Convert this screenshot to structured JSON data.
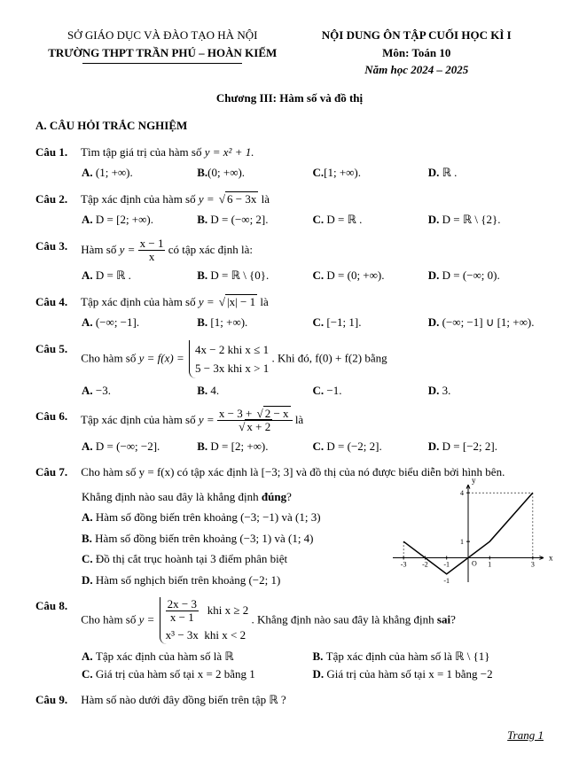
{
  "header": {
    "so": "SỞ GIÁO DỤC VÀ ĐÀO TẠO HÀ NỘI",
    "truong": "TRƯỜNG THPT TRẦN PHÚ – HOÀN KIẾM",
    "title": "NỘI DUNG ÔN TẬP CUỐI HỌC KÌ I",
    "mon": "Môn: Toán 10",
    "nam": "Năm học 2024 – 2025"
  },
  "chapter": "Chương III: Hàm số và đồ thị",
  "sectionA": "A. CÂU HỎI TRẮC NGHIỆM",
  "q1": {
    "label": "Câu 1.",
    "text": "Tìm tập giá trị của hàm số ",
    "formula": "y = x² + 1.",
    "A": "(1; +∞).",
    "B": "(0; +∞).",
    "C": "[1; +∞).",
    "D": "ℝ ."
  },
  "q2": {
    "label": "Câu 2.",
    "text": "Tập xác định của hàm số ",
    "formula_pre": "y = ",
    "radicand": "6 − 3x",
    "formula_post": " là",
    "A": "D = [2; +∞).",
    "B": "D = (−∞; 2].",
    "C": "D = ℝ .",
    "D": "D = ℝ \\ {2}."
  },
  "q3": {
    "label": "Câu 3.",
    "text": "Hàm số ",
    "frac_top": "x − 1",
    "frac_bot": "x",
    "text2": " có tập xác định là:",
    "A": "D = ℝ .",
    "B": "D = ℝ \\ {0}.",
    "C": "D = (0; +∞).",
    "D": "D = (−∞; 0)."
  },
  "q4": {
    "label": "Câu 4.",
    "text": "Tập xác định của hàm số ",
    "formula_pre": "y = ",
    "radicand": "|x| − 1",
    "formula_post": " là",
    "A": "(−∞; −1].",
    "B": "[1; +∞).",
    "C": "[−1; 1].",
    "D": "(−∞; −1] ∪ [1; +∞)."
  },
  "q5": {
    "label": "Câu 5.",
    "text": "Cho hàm số ",
    "piece1": "4x − 2 khi x ≤ 1",
    "piece2": "5 − 3x khi x > 1",
    "text2": ". Khi đó, f(0) + f(2) bằng",
    "A": "−3.",
    "B": "4.",
    "C": "−1.",
    "D": "3."
  },
  "q6": {
    "label": "Câu 6.",
    "text": "Tập xác định của hàm số ",
    "top_pre": "x − 3 + ",
    "top_rad": "2 − x",
    "bot_rad": "x + 2",
    "text2": " là",
    "A": "D = (−∞; −2].",
    "B": "D = [2; +∞).",
    "C": "D = (−2; 2].",
    "D": "D = [−2; 2]."
  },
  "q7": {
    "label": "Câu 7.",
    "text": "Cho hàm số y = f(x) có tập xác định là [−3; 3] và đồ thị của nó được biểu diễn bởi hình bên.",
    "sub": "Khẳng định  nào sau đây là khẳng định ",
    "sub_bold": "đúng",
    "sub_end": "?",
    "A": "Hàm số đồng biến trên khoảng (−3; −1) và (1; 3)",
    "B": "Hàm số đồng biến trên khoảng (−3; 1) và (1; 4)",
    "C": "Đồ thị cắt trục hoành tại 3 điểm phân biệt",
    "D": "Hàm số nghịch biến trên khoảng (−2; 1)"
  },
  "chart": {
    "width": 170,
    "height": 110,
    "xlim": [
      -3.5,
      3.5
    ],
    "ylim": [
      -1.5,
      4.5
    ],
    "xticks": [
      -3,
      -2,
      -1,
      1,
      3
    ],
    "yticks": [
      1,
      4
    ],
    "axis_color": "#000000",
    "line_color": "#000000",
    "line_width": 1.5,
    "points": [
      [
        -3,
        1
      ],
      [
        -1,
        -1
      ],
      [
        1,
        1
      ],
      [
        3,
        4
      ]
    ]
  },
  "q8": {
    "label": "Câu 8.",
    "text": "Cho hàm số ",
    "p1_top": "2x − 3",
    "p1_bot": "x − 1",
    "p1_cond": "khi x ≥ 2",
    "p2": "x³ − 3x",
    "p2_cond": "khi x < 2",
    "text2": ". Khẳng định  nào sau đây là khẳng định ",
    "text2_bold": "sai",
    "text2_end": "?",
    "A": "Tập xác định của hàm số là ℝ",
    "B": "Tập xác định của hàm số là ℝ \\ {1}",
    "C": "Giá trị của hàm số tại x = 2 bằng 1",
    "D": "Giá trị của hàm số tại x = 1 bằng −2"
  },
  "q9": {
    "label": "Câu 9.",
    "text": "Hàm số nào dưới đây đồng biến trên tập ℝ ?"
  },
  "footer": "Trang 1"
}
